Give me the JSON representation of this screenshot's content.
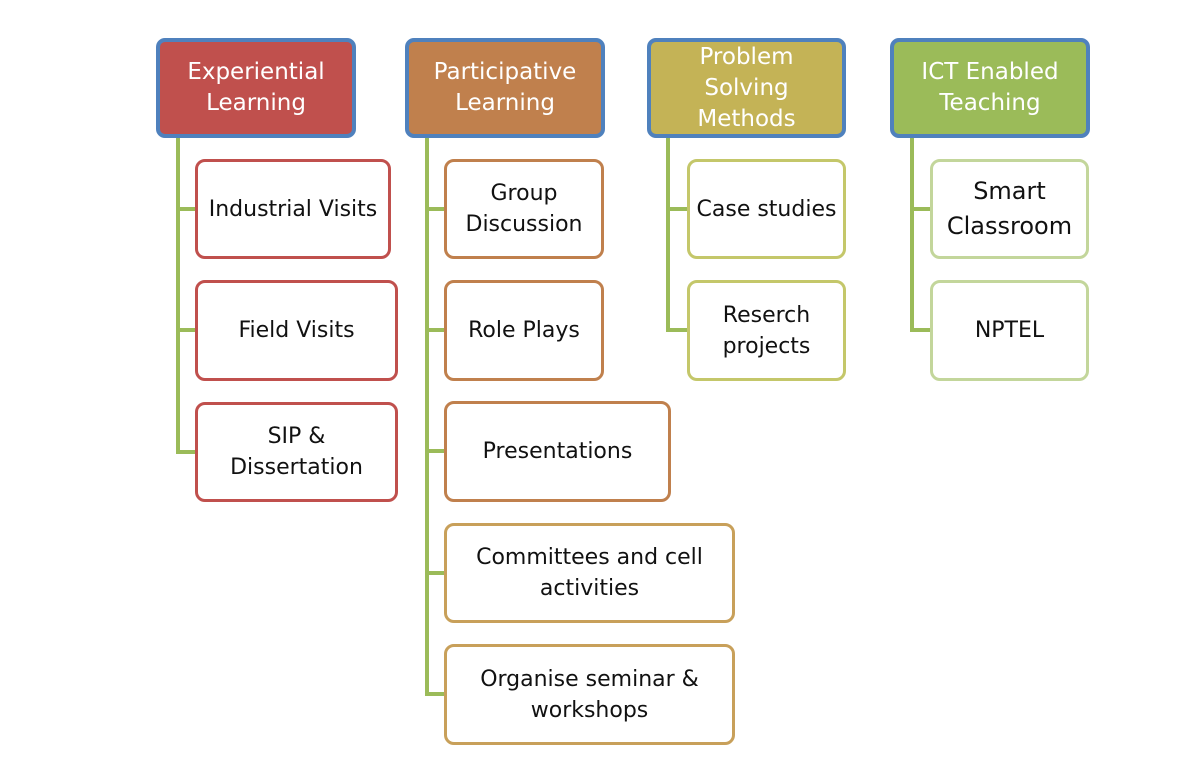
{
  "colors": {
    "header_border": "#4f81bd",
    "connector": "#9bbb59",
    "group_1_fill": "#c0504d",
    "group_2_fill": "#c0804d",
    "group_3_fill": "#c4b356",
    "group_4_fill": "#9bbb59"
  },
  "groups": [
    {
      "title": "Experiential Learning",
      "children": [
        "Industrial Visits",
        "Field Visits",
        "SIP & Dissertation"
      ]
    },
    {
      "title": "Participative Learning",
      "children": [
        "Group Discussion",
        "Role Plays",
        "Presentations",
        "Committees and cell activities",
        "Organise seminar & workshops"
      ]
    },
    {
      "title": "Problem Solving Methods",
      "children": [
        "Case studies",
        "Reserch projects"
      ]
    },
    {
      "title": "ICT Enabled Teaching",
      "children": [
        "Smart Classroom",
        "NPTEL"
      ]
    }
  ]
}
